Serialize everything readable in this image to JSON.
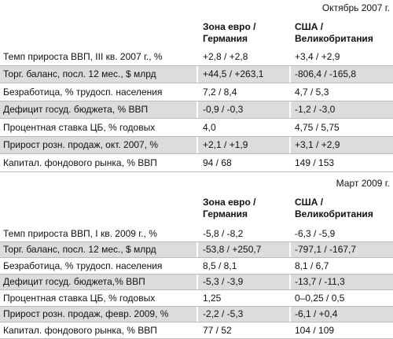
{
  "tables": [
    {
      "date": "Октябрь 2007 г.",
      "headers": [
        [
          "Зона евро /",
          "Германия"
        ],
        [
          "США /",
          "Великобритания"
        ]
      ],
      "rows": [
        [
          "Темп прироста ВВП, III кв. 2007 г., %",
          "+2,8 / +2,8",
          "+3,4 / +2,9"
        ],
        [
          "Торг. баланс, посл. 12 мес., $ млрд",
          "+44,5 / +263,1",
          "-806,4 / -165,8"
        ],
        [
          "Безработица, % трудосп. населения",
          "7,2 / 8,4",
          "4,7 / 5,3"
        ],
        [
          "Дефицит госуд. бюджета, % ВВП",
          "-0,9 / -0,3",
          "-1,2 / -3,0"
        ],
        [
          "Процентная ставка ЦБ, % годовых",
          "4,0",
          "4,75 / 5,75"
        ],
        [
          "Прирост розн. продаж, окт. 2007, %",
          "+2,1 / +1,9",
          "+3,1 / +2,9"
        ],
        [
          "Капитал. фондового рынка, % ВВП",
          "94 / 68",
          "149 / 153"
        ]
      ]
    },
    {
      "date": "Март 2009 г.",
      "headers": [
        [
          "Зона евро /",
          "Германия"
        ],
        [
          "США /",
          "Великобритания"
        ]
      ],
      "rows": [
        [
          "Темп прироста ВВП, I кв. 2009 г., %",
          "-5,8 / -8,2",
          "-6,3 / -5,9"
        ],
        [
          "Торг. баланс, посл. 12 мес., $ млрд",
          "-53,8 / +250,7",
          "-797,1 / -167,7"
        ],
        [
          "Безработица, % трудосп. населения",
          "8,5 / 8,1",
          "8,1 / 6,7"
        ],
        [
          "Дефицит госуд. бюджета,% ВВП",
          "-5,3 / -3,9",
          "-13,7 / -11,3"
        ],
        [
          "Процентная ставка ЦБ, % годовых",
          "1,25",
          "0–0,25 / 0,5"
        ],
        [
          "Прирост розн. продаж, февр. 2009, %",
          "-2,2 / -5,3",
          "-6,1 / +0,4"
        ],
        [
          "Капитал. фондового рынка, % ВВП",
          "77 / 52",
          "104 / 109"
        ]
      ]
    }
  ]
}
